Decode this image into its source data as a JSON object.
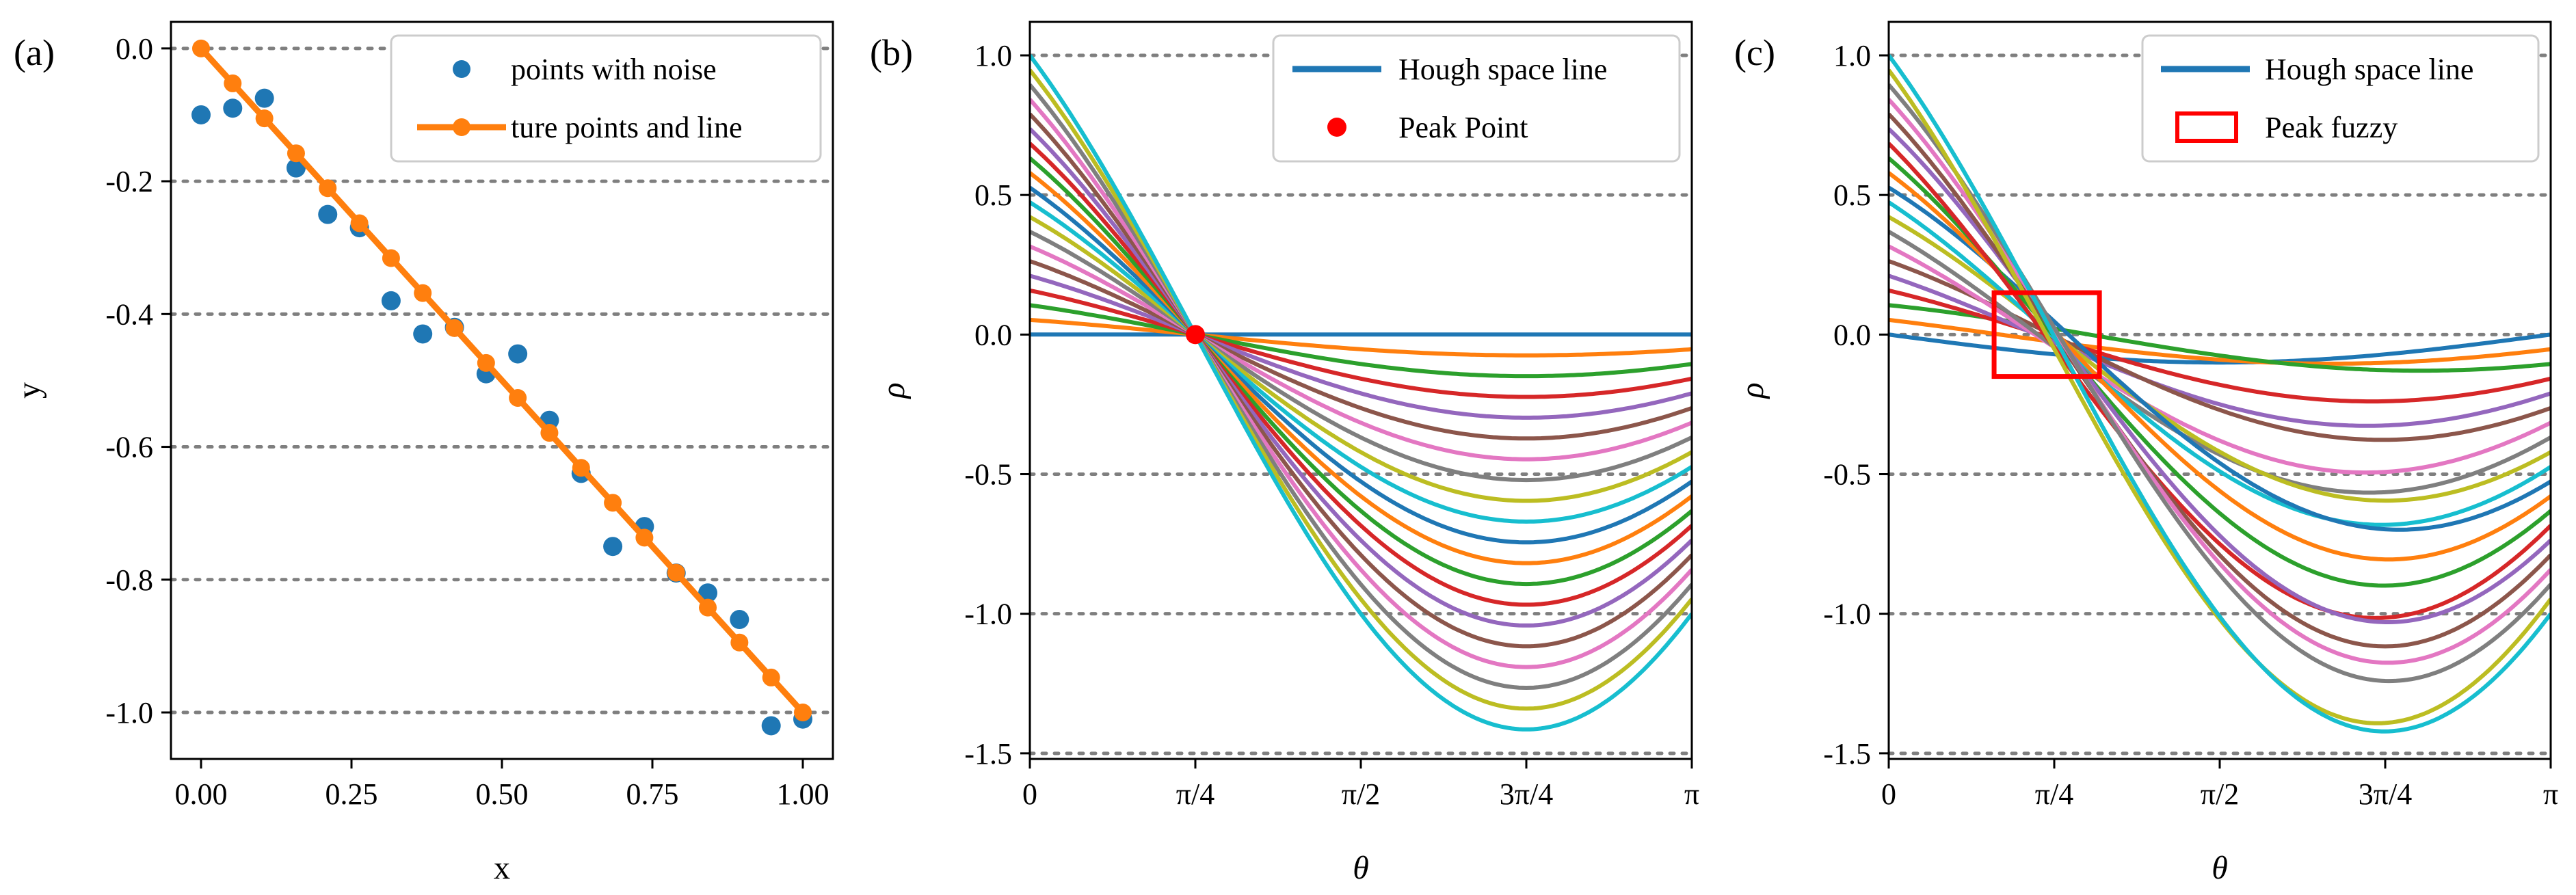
{
  "colors": {
    "tab": [
      "#1f77b4",
      "#ff7f0e",
      "#2ca02c",
      "#d62728",
      "#9467bd",
      "#8c564b",
      "#e377c2",
      "#7f7f7f",
      "#bcbd22",
      "#17becf"
    ],
    "noise": "#1f77b4",
    "true_line": "#ff7f0e",
    "hough_legend": "#1f77b4",
    "peak": "#ff0000",
    "grid": "#7f7f7f"
  },
  "chart_data": [
    {
      "type": "scatter",
      "panel_label": "(a)",
      "xlabel": "x",
      "ylabel": "y",
      "xlim": [
        -0.05,
        1.05
      ],
      "ylim": [
        -1.07,
        0.04
      ],
      "xticks": [
        0,
        0.25,
        0.5,
        0.75,
        1.0
      ],
      "xtick_labels": [
        "0.00",
        "0.25",
        "0.50",
        "0.75",
        "1.00"
      ],
      "yticks": [
        0,
        -0.2,
        -0.4,
        -0.6,
        -0.8,
        -1.0
      ],
      "ytick_labels": [
        "0.0",
        "-0.2",
        "-0.4",
        "-0.6",
        "-0.8",
        "-1.0"
      ],
      "grid_y": true,
      "legend": {
        "position": "top-right",
        "entries": [
          "points with noise",
          "ture points and line"
        ]
      },
      "series": [
        {
          "name": "points with noise",
          "kind": "scatter",
          "x": [
            0.0,
            0.0526,
            0.1053,
            0.1579,
            0.2105,
            0.2632,
            0.3158,
            0.3684,
            0.4211,
            0.4737,
            0.5263,
            0.5789,
            0.6316,
            0.6842,
            0.7368,
            0.7895,
            0.8421,
            0.8947,
            0.9474,
            1.0
          ],
          "y": [
            -0.1,
            -0.09,
            -0.075,
            -0.18,
            -0.25,
            -0.27,
            -0.38,
            -0.43,
            -0.42,
            -0.49,
            -0.46,
            -0.56,
            -0.64,
            -0.75,
            -0.72,
            -0.79,
            -0.82,
            -0.86,
            -1.02,
            -1.01
          ]
        },
        {
          "name": "ture points and line",
          "kind": "line-markers",
          "x": [
            0.0,
            0.0526,
            0.1053,
            0.1579,
            0.2105,
            0.2632,
            0.3158,
            0.3684,
            0.4211,
            0.4737,
            0.5263,
            0.5789,
            0.6316,
            0.6842,
            0.7368,
            0.7895,
            0.8421,
            0.8947,
            0.9474,
            1.0
          ],
          "y": [
            0.0,
            -0.0526,
            -0.1053,
            -0.1579,
            -0.2105,
            -0.2632,
            -0.3158,
            -0.3684,
            -0.4211,
            -0.4737,
            -0.5263,
            -0.5789,
            -0.6316,
            -0.6842,
            -0.7368,
            -0.7895,
            -0.8421,
            -0.8947,
            -0.9474,
            -1.0
          ]
        }
      ]
    },
    {
      "type": "line",
      "panel_label": "(b)",
      "xlabel": "θ",
      "ylabel": "ρ",
      "xlim": [
        0,
        3.14159
      ],
      "ylim": [
        -1.52,
        1.12
      ],
      "xticks": [
        0,
        0.7854,
        1.5708,
        2.3562,
        3.14159
      ],
      "xtick_labels": [
        "0",
        "π/4",
        "π/2",
        "3π/4",
        "π"
      ],
      "yticks": [
        1.0,
        0.5,
        0.0,
        -0.5,
        -1.0,
        -1.5
      ],
      "ytick_labels": [
        "1.0",
        "0.5",
        "0.0",
        "-0.5",
        "-1.0",
        "-1.5"
      ],
      "grid_y": true,
      "legend": {
        "position": "top-right",
        "entries": [
          "Hough space line",
          "Peak Point"
        ]
      },
      "curve_formula": "rho = x*cos(theta) + y*sin(theta)",
      "hough_points": {
        "x": [
          0.0,
          0.0526,
          0.1053,
          0.1579,
          0.2105,
          0.2632,
          0.3158,
          0.3684,
          0.4211,
          0.4737,
          0.5263,
          0.5789,
          0.6316,
          0.6842,
          0.7368,
          0.7895,
          0.8421,
          0.8947,
          0.9474,
          1.0
        ],
        "y": [
          0.0,
          -0.0526,
          -0.1053,
          -0.1579,
          -0.2105,
          -0.2632,
          -0.3158,
          -0.3684,
          -0.4211,
          -0.4737,
          -0.5263,
          -0.5789,
          -0.6316,
          -0.6842,
          -0.7368,
          -0.7895,
          -0.8421,
          -0.8947,
          -0.9474,
          -1.0
        ]
      },
      "peak": {
        "theta": 0.7854,
        "rho": 0.0
      }
    },
    {
      "type": "line",
      "panel_label": "(c)",
      "xlabel": "θ",
      "ylabel": "ρ",
      "xlim": [
        0,
        3.14159
      ],
      "ylim": [
        -1.52,
        1.12
      ],
      "xticks": [
        0,
        0.7854,
        1.5708,
        2.3562,
        3.14159
      ],
      "xtick_labels": [
        "0",
        "π/4",
        "π/2",
        "3π/4",
        "π"
      ],
      "yticks": [
        1.0,
        0.5,
        0.0,
        -0.5,
        -1.0,
        -1.5
      ],
      "ytick_labels": [
        "1.0",
        "0.5",
        "0.0",
        "-0.5",
        "-1.0",
        "-1.5"
      ],
      "grid_y": true,
      "legend": {
        "position": "top-right",
        "entries": [
          "Hough space line",
          "Peak fuzzy"
        ]
      },
      "curve_formula": "rho = x*cos(theta) + y*sin(theta)",
      "hough_points": {
        "x": [
          0.0,
          0.0526,
          0.1053,
          0.1579,
          0.2105,
          0.2632,
          0.3158,
          0.3684,
          0.4211,
          0.4737,
          0.5263,
          0.5789,
          0.6316,
          0.6842,
          0.7368,
          0.7895,
          0.8421,
          0.8947,
          0.9474,
          1.0
        ],
        "y": [
          -0.1,
          -0.09,
          -0.075,
          -0.18,
          -0.25,
          -0.27,
          -0.38,
          -0.43,
          -0.42,
          -0.49,
          -0.46,
          -0.56,
          -0.64,
          -0.75,
          -0.72,
          -0.79,
          -0.82,
          -0.86,
          -1.02,
          -1.01
        ]
      },
      "fuzzy_box": {
        "theta": [
          0.5,
          1.0
        ],
        "rho": [
          -0.15,
          0.15
        ]
      }
    }
  ]
}
